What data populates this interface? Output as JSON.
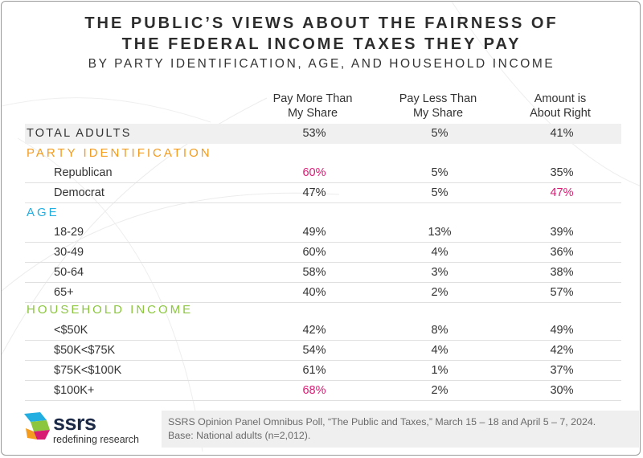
{
  "title": {
    "line1": "THE PUBLIC’S VIEWS ABOUT THE FAIRNESS OF",
    "line2": "THE FEDERAL INCOME TAXES THEY PAY",
    "subtitle": "BY PARTY IDENTIFICATION, AGE, AND HOUSEHOLD INCOME"
  },
  "columns": [
    {
      "line1": "Pay More Than",
      "line2": "My Share"
    },
    {
      "line1": "Pay Less Than",
      "line2": "My Share"
    },
    {
      "line1": "Amount is",
      "line2": "About Right"
    }
  ],
  "total": {
    "label": "TOTAL ADULTS",
    "values": [
      "53%",
      "5%",
      "41%"
    ]
  },
  "sections": {
    "party": {
      "label": "PARTY IDENTIFICATION",
      "color": "#f39c1f",
      "rows": [
        {
          "label": "Republican",
          "values": [
            "60%",
            "5%",
            "35%"
          ]
        },
        {
          "label": "Democrat",
          "values": [
            "47%",
            "5%",
            "47%"
          ]
        }
      ]
    },
    "age": {
      "label": "AGE",
      "color": "#22aee0",
      "rows": [
        {
          "label": "18-29",
          "values": [
            "49%",
            "13%",
            "39%"
          ]
        },
        {
          "label": "30-49",
          "values": [
            "60%",
            "4%",
            "36%"
          ]
        },
        {
          "label": "50-64",
          "values": [
            "58%",
            "3%",
            "38%"
          ]
        },
        {
          "label": "65+",
          "values": [
            "40%",
            "2%",
            "57%"
          ]
        }
      ]
    },
    "income": {
      "label": "HOUSEHOLD INCOME",
      "color": "#8cc63f",
      "rows": [
        {
          "label": "<$50K",
          "values": [
            "42%",
            "8%",
            "49%"
          ]
        },
        {
          "label": "$50K<$75K",
          "values": [
            "54%",
            "4%",
            "42%"
          ]
        },
        {
          "label": "$75K<$100K",
          "values": [
            "61%",
            "1%",
            "37%"
          ]
        },
        {
          "label": "$100K+",
          "values": [
            "68%",
            "2%",
            "30%"
          ]
        }
      ]
    }
  },
  "highlight_color": "#d81b73",
  "logo": {
    "name": "ssrs",
    "tagline": "redefining research",
    "icon": "ssrs-logo-icon"
  },
  "source": {
    "line1": "SSRS Opinion Panel Omnibus Poll, “The Public and Taxes,” March 15 – 18 and April 5 – 7, 2024.",
    "line2": "Base: National adults (n=2,012)."
  }
}
